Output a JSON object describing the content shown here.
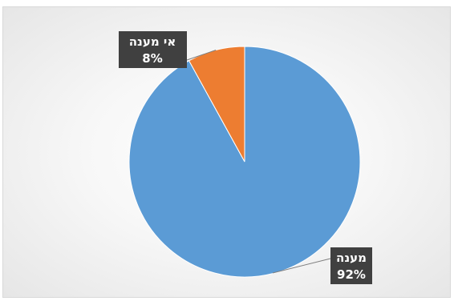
{
  "chart_data": {
    "type": "pie",
    "categories": [
      "מענה",
      "אי מענה"
    ],
    "values": [
      92,
      8
    ],
    "value_labels": [
      "92%",
      "8%"
    ],
    "colors": [
      "#5b9bd5",
      "#ed7d31"
    ],
    "start_angle": "12 o'clock",
    "direction": "clockwise",
    "legend": "none",
    "data_label_style": "callout boxes, dark background, white bold text"
  }
}
